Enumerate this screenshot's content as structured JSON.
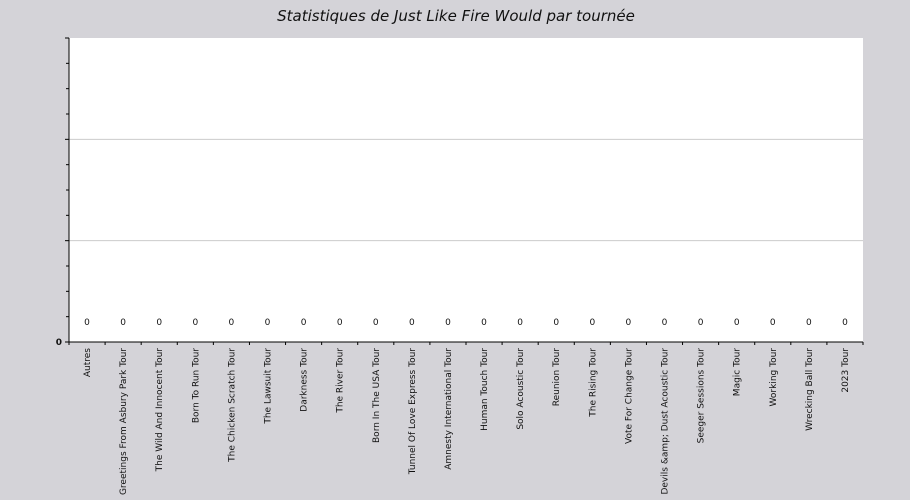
{
  "chart_data": {
    "type": "line",
    "title": "Statistiques de Just Like Fire Would  par tournée",
    "xlabel": "",
    "ylabel": "",
    "categories": [
      "Autres",
      "Greetings From Asbury Park Tour",
      "The Wild And Innocent Tour",
      "Born To Run Tour",
      "The Chicken Scratch Tour",
      "The Lawsuit Tour",
      "Darkness Tour",
      "The River Tour",
      "Born In The USA Tour",
      "Tunnel Of Love Express Tour",
      "Amnesty International Tour",
      "Human Touch Tour",
      "Solo Acoustic Tour",
      "Reunion Tour",
      "The Rising Tour",
      "Vote For  Change Tour",
      "Devils &amp; Dust Acoustic Tour",
      "Seeger Sessions Tour",
      "Magic Tour",
      "Working Tour",
      "Wrecking Ball Tour",
      "2023 Tour"
    ],
    "series": [
      {
        "values": [
          0,
          0,
          0,
          0,
          0,
          0,
          0,
          0,
          0,
          0,
          0,
          0,
          0,
          0,
          0,
          0,
          0,
          0,
          0,
          0,
          0,
          0
        ],
        "labels": [
          "0",
          "0",
          "0",
          "0",
          "0",
          "0",
          "0",
          "0",
          "0",
          "0",
          "0",
          "0",
          "0",
          "0",
          "0",
          "0",
          "0",
          "0",
          "0",
          "0",
          "0",
          "0"
        ]
      }
    ],
    "y_tick_labels": [
      "0"
    ],
    "ylim": [
      0,
      3
    ],
    "grid": true,
    "colors": {
      "background": "#d4d3d8",
      "plot": "#ffffff",
      "grid": "#cccccc",
      "axis": "#000000"
    }
  }
}
